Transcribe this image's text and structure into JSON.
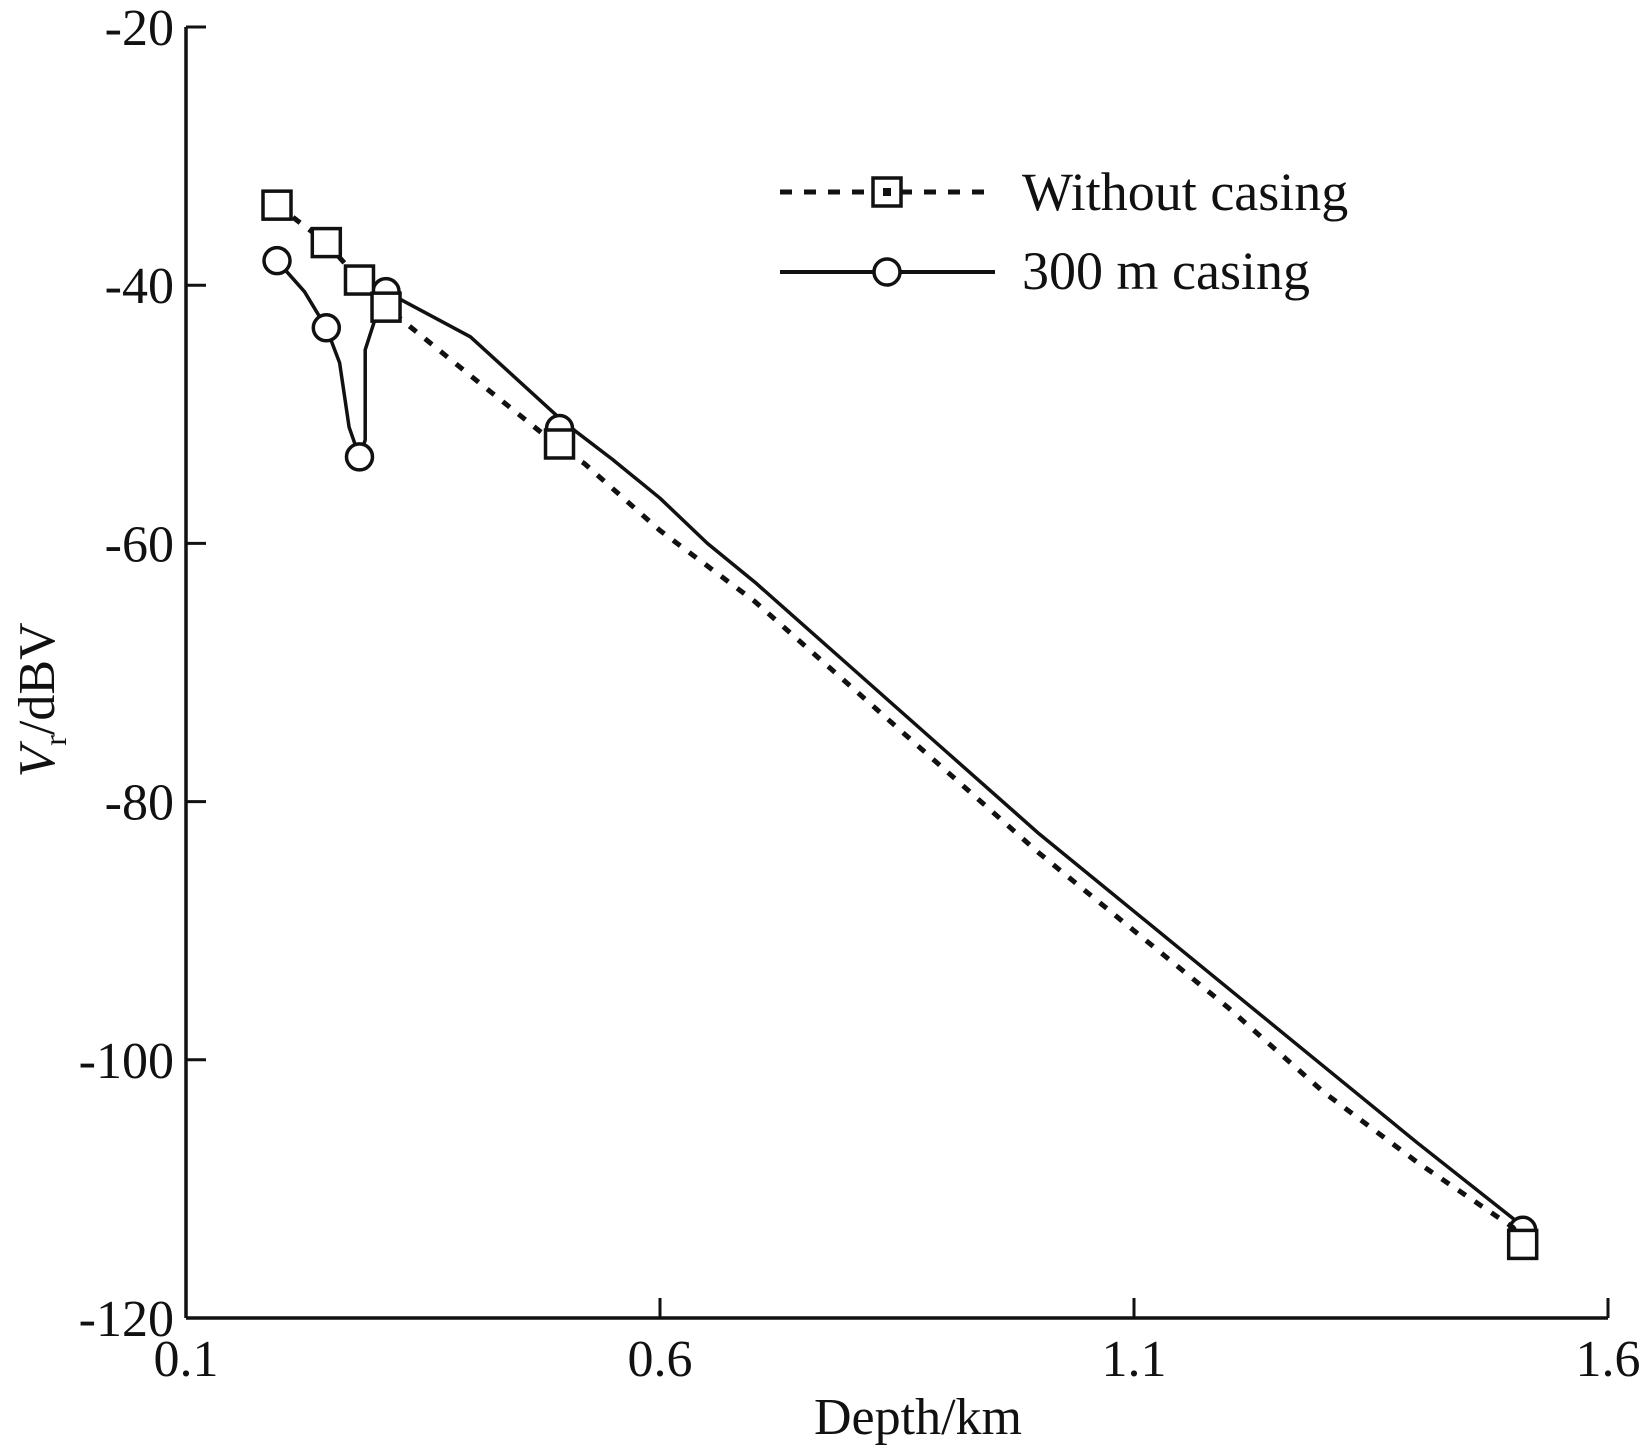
{
  "chart_data": {
    "type": "line",
    "title": "",
    "xlabel": "Depth/km",
    "ylabel": {
      "main": "V",
      "sub": "r",
      "unit": "/dBV"
    },
    "xlim": [
      0.1,
      1.6
    ],
    "ylim": [
      -120,
      -20
    ],
    "xticks": [
      0.1,
      0.6,
      1.1,
      1.6
    ],
    "xtick_labels": [
      "0.1",
      "0.6",
      "1.1",
      "1.6"
    ],
    "yticks": [
      -20,
      -40,
      -60,
      -80,
      -100,
      -120
    ],
    "ytick_labels": [
      "-20",
      "-40",
      "-60",
      "-80",
      "-100",
      "-120"
    ],
    "legend_position": "top-right",
    "series": [
      {
        "name": "Without casing",
        "style": "dashed",
        "marker": "square",
        "x": [
          0.196,
          0.248,
          0.283,
          0.311,
          0.4,
          0.5,
          0.52,
          0.6,
          0.7,
          0.8,
          0.9,
          1.0,
          1.1,
          1.2,
          1.3,
          1.4,
          1.5,
          1.51
        ],
        "y": [
          -33.8,
          -36.7,
          -39.6,
          -41.7,
          -47.0,
          -52.9,
          -53.8,
          -59.0,
          -64.5,
          -71.0,
          -77.5,
          -84.0,
          -90.0,
          -96.0,
          -102.5,
          -108.0,
          -113.0,
          -114.3
        ],
        "marker_x": [
          0.196,
          0.248,
          0.283,
          0.311,
          0.494,
          1.51
        ],
        "marker_y": [
          -33.8,
          -36.7,
          -39.6,
          -41.7,
          -52.3,
          -114.3
        ]
      },
      {
        "name": "300 m casing",
        "style": "solid",
        "marker": "circle",
        "x": [
          0.196,
          0.225,
          0.248,
          0.262,
          0.268,
          0.272,
          0.283,
          0.289,
          0.289,
          0.3,
          0.311,
          0.4,
          0.5,
          0.55,
          0.6,
          0.65,
          0.7,
          0.8,
          0.9,
          1.0,
          1.1,
          1.2,
          1.3,
          1.4,
          1.5,
          1.51
        ],
        "y": [
          -38.1,
          -40.5,
          -43.3,
          -46.0,
          -49.0,
          -51.0,
          -53.3,
          -52.0,
          -45.0,
          -42.5,
          -40.5,
          -44.0,
          -50.7,
          -53.5,
          -56.5,
          -60.0,
          -63.0,
          -69.5,
          -76.0,
          -82.5,
          -88.5,
          -94.5,
          -100.5,
          -106.5,
          -112.3,
          -113.2
        ],
        "marker_x": [
          0.196,
          0.248,
          0.283,
          0.311,
          0.494,
          1.51
        ],
        "marker_y": [
          -38.1,
          -43.3,
          -53.3,
          -40.5,
          -51.1,
          -113.2
        ]
      }
    ]
  },
  "colors": {
    "ink": "#111111",
    "background": "#ffffff"
  }
}
